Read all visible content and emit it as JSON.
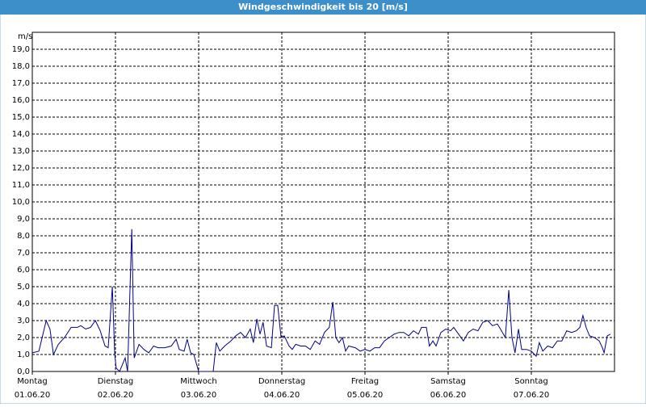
{
  "chart_data": {
    "type": "line",
    "title": "Windgeschwindigkeit bis 20 [m/s]",
    "y_label": "m/s",
    "x": [
      0,
      1.9,
      4.0,
      5.1,
      6.1,
      7.5,
      9.3,
      11.2,
      13.0,
      14.0,
      15.4,
      16.8,
      18.2,
      19.6,
      21.0,
      21.9,
      23.1,
      23.8,
      24.2,
      25.2,
      26.8,
      27.5,
      28.7,
      29.4,
      30.8,
      32.2,
      33.6,
      35.0,
      36.3,
      38.2,
      40.1,
      41.5,
      42.4,
      43.8,
      44.7,
      45.7,
      46.6,
      48.0,
      50.3,
      52.2,
      53.1,
      54.1,
      55.5,
      57.3,
      58.7,
      60.1,
      61.5,
      62.9,
      63.8,
      64.8,
      65.7,
      66.6,
      67.6,
      69.0,
      69.9,
      70.8,
      71.8,
      72.7,
      74.1,
      75.0,
      76.0,
      77.4,
      78.8,
      80.2,
      81.6,
      82.9,
      84.3,
      85.7,
      86.7,
      87.6,
      88.5,
      89.5,
      90.4,
      91.3,
      93.2,
      94.6,
      96.0,
      97.4,
      98.8,
      100.2,
      101.6,
      103.0,
      104.4,
      105.8,
      107.2,
      108.6,
      110.0,
      111.4,
      112.3,
      113.7,
      114.6,
      115.6,
      116.5,
      117.9,
      119.3,
      120.7,
      121.6,
      123.0,
      124.4,
      125.8,
      127.2,
      128.6,
      130.0,
      131.4,
      132.8,
      134.2,
      135.1,
      136.5,
      137.5,
      138.4,
      139.3,
      140.3,
      141.2,
      142.6,
      144.0,
      145.4,
      146.3,
      147.3,
      148.7,
      150.1,
      151.5,
      152.8,
      154.2,
      155.6,
      157.0,
      158.0,
      158.9,
      159.8,
      160.8,
      162.2,
      163.6,
      164.5,
      165.0,
      165.9,
      166.8
    ],
    "series": [
      {
        "color": "#00008b",
        "values": [
          1.1,
          1.2,
          3.0,
          2.5,
          1.0,
          1.6,
          2.0,
          2.6,
          2.6,
          2.7,
          2.5,
          2.6,
          3.0,
          2.4,
          1.5,
          1.4,
          5.0,
          1.0,
          0.2,
          0.0,
          0.8,
          0.0,
          8.4,
          0.8,
          1.6,
          1.3,
          1.1,
          1.5,
          1.4,
          1.4,
          1.5,
          1.9,
          1.3,
          1.2,
          1.9,
          1.1,
          1.0,
          0.0,
          0.0,
          0.0,
          1.7,
          1.2,
          1.5,
          1.8,
          2.1,
          2.3,
          2.0,
          2.5,
          1.7,
          3.1,
          2.2,
          2.9,
          1.5,
          1.4,
          3.9,
          3.9,
          2.0,
          2.1,
          1.5,
          1.3,
          1.6,
          1.5,
          1.5,
          1.3,
          1.8,
          1.6,
          2.3,
          2.6,
          4.1,
          2.0,
          1.7,
          2.0,
          1.2,
          1.5,
          1.4,
          1.2,
          1.3,
          1.2,
          1.4,
          1.4,
          1.8,
          2.0,
          2.2,
          2.3,
          2.3,
          2.1,
          2.4,
          2.2,
          2.6,
          2.6,
          1.5,
          1.8,
          1.5,
          2.3,
          2.5,
          2.4,
          2.6,
          2.2,
          1.8,
          2.3,
          2.5,
          2.4,
          2.9,
          3.0,
          2.7,
          2.8,
          2.5,
          2.0,
          4.8,
          2.0,
          1.1,
          2.5,
          1.3,
          1.3,
          1.2,
          0.9,
          1.7,
          1.2,
          1.5,
          1.4,
          1.8,
          1.8,
          2.4,
          2.3,
          2.4,
          2.6,
          3.3,
          2.6,
          2.1,
          2.0,
          1.8,
          1.4,
          1.1,
          2.1,
          2.2
        ]
      }
    ],
    "xlim": [
      0,
      168
    ],
    "xticks": [
      {
        "value": 0,
        "label": "Montag"
      },
      {
        "value": 24,
        "label": "Dienstag"
      },
      {
        "value": 48,
        "label": "Mittwoch"
      },
      {
        "value": 72,
        "label": "Donnerstag"
      },
      {
        "value": 96,
        "label": "Freitag"
      },
      {
        "value": 120,
        "label": "Samstag"
      },
      {
        "value": 144,
        "label": "Sonntag"
      }
    ],
    "xtick_dates": [
      "01.06.20",
      "02.06.20",
      "03.06.20",
      "04.06.20",
      "05.06.20",
      "06.06.20",
      "07.06.20"
    ],
    "ylim": [
      0,
      20
    ],
    "yticks": [
      {
        "value": 0,
        "label": "0,0"
      },
      {
        "value": 1,
        "label": "1,0"
      },
      {
        "value": 2,
        "label": "2,0"
      },
      {
        "value": 3,
        "label": "3,0"
      },
      {
        "value": 4,
        "label": "4,0"
      },
      {
        "value": 5,
        "label": "5,0"
      },
      {
        "value": 6,
        "label": "6,0"
      },
      {
        "value": 7,
        "label": "7,0"
      },
      {
        "value": 8,
        "label": "8,0"
      },
      {
        "value": 9,
        "label": "9,0"
      },
      {
        "value": 10,
        "label": "10,0"
      },
      {
        "value": 11,
        "label": "11,0"
      },
      {
        "value": 12,
        "label": "12,0"
      },
      {
        "value": 13,
        "label": "13,0"
      },
      {
        "value": 14,
        "label": "14,0"
      },
      {
        "value": 15,
        "label": "15,0"
      },
      {
        "value": 16,
        "label": "16,0"
      },
      {
        "value": 17,
        "label": "17,0"
      },
      {
        "value": 18,
        "label": "18,0"
      },
      {
        "value": 19,
        "label": "19,0"
      }
    ],
    "grid": true
  }
}
